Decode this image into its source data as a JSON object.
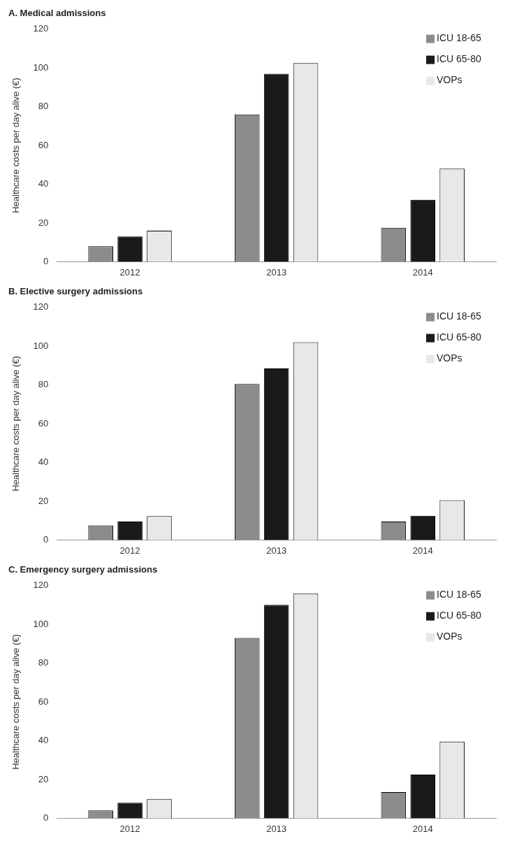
{
  "chart_data": [
    {
      "type": "bar",
      "title": "A. Medical admissions",
      "ylabel": "Healthcare costs per day alive (€)",
      "categories": [
        "2012",
        "2013",
        "2014"
      ],
      "series": [
        {
          "name": "ICU 18-65",
          "color": "#8c8c8c",
          "values": [
            8,
            76,
            17.5
          ]
        },
        {
          "name": "ICU 65-80",
          "color": "#1a1a1a",
          "values": [
            13,
            97,
            32
          ]
        },
        {
          "name": "VOPs",
          "color": "#e8e8e8",
          "values": [
            16,
            102.5,
            48
          ]
        }
      ],
      "ylim": [
        0,
        120
      ],
      "yticks": [
        0,
        20,
        40,
        60,
        80,
        100,
        120
      ],
      "grid": false,
      "legend": "top right"
    },
    {
      "type": "bar",
      "title": "B. Elective surgery admissions",
      "ylabel": "Healthcare costs per day alive (€)",
      "categories": [
        "2012",
        "2013",
        "2014"
      ],
      "series": [
        {
          "name": "ICU 18-65",
          "color": "#8c8c8c",
          "values": [
            7.5,
            80.5,
            9.5
          ]
        },
        {
          "name": "ICU 65-80",
          "color": "#1a1a1a",
          "values": [
            9.5,
            88.5,
            12.5
          ]
        },
        {
          "name": "VOPs",
          "color": "#e8e8e8",
          "values": [
            12.3,
            102,
            20.5
          ]
        }
      ],
      "ylim": [
        0,
        120
      ],
      "yticks": [
        0,
        20,
        40,
        60,
        80,
        100,
        120
      ],
      "grid": false,
      "legend": "top right"
    },
    {
      "type": "bar",
      "title": "C. Emergency surgery admissions",
      "ylabel": "Healthcare costs per day alive (€)",
      "categories": [
        "2012",
        "2013",
        "2014"
      ],
      "series": [
        {
          "name": "ICU 18-65",
          "color": "#8c8c8c",
          "values": [
            4,
            93,
            13.5
          ]
        },
        {
          "name": "ICU 65-80",
          "color": "#1a1a1a",
          "values": [
            8,
            110,
            22.5
          ]
        },
        {
          "name": "VOPs",
          "color": "#e8e8e8",
          "values": [
            10,
            116,
            39.5
          ]
        }
      ],
      "ylim": [
        0,
        120
      ],
      "yticks": [
        0,
        20,
        40,
        60,
        80,
        100,
        120
      ],
      "grid": false,
      "legend": "top right"
    }
  ]
}
